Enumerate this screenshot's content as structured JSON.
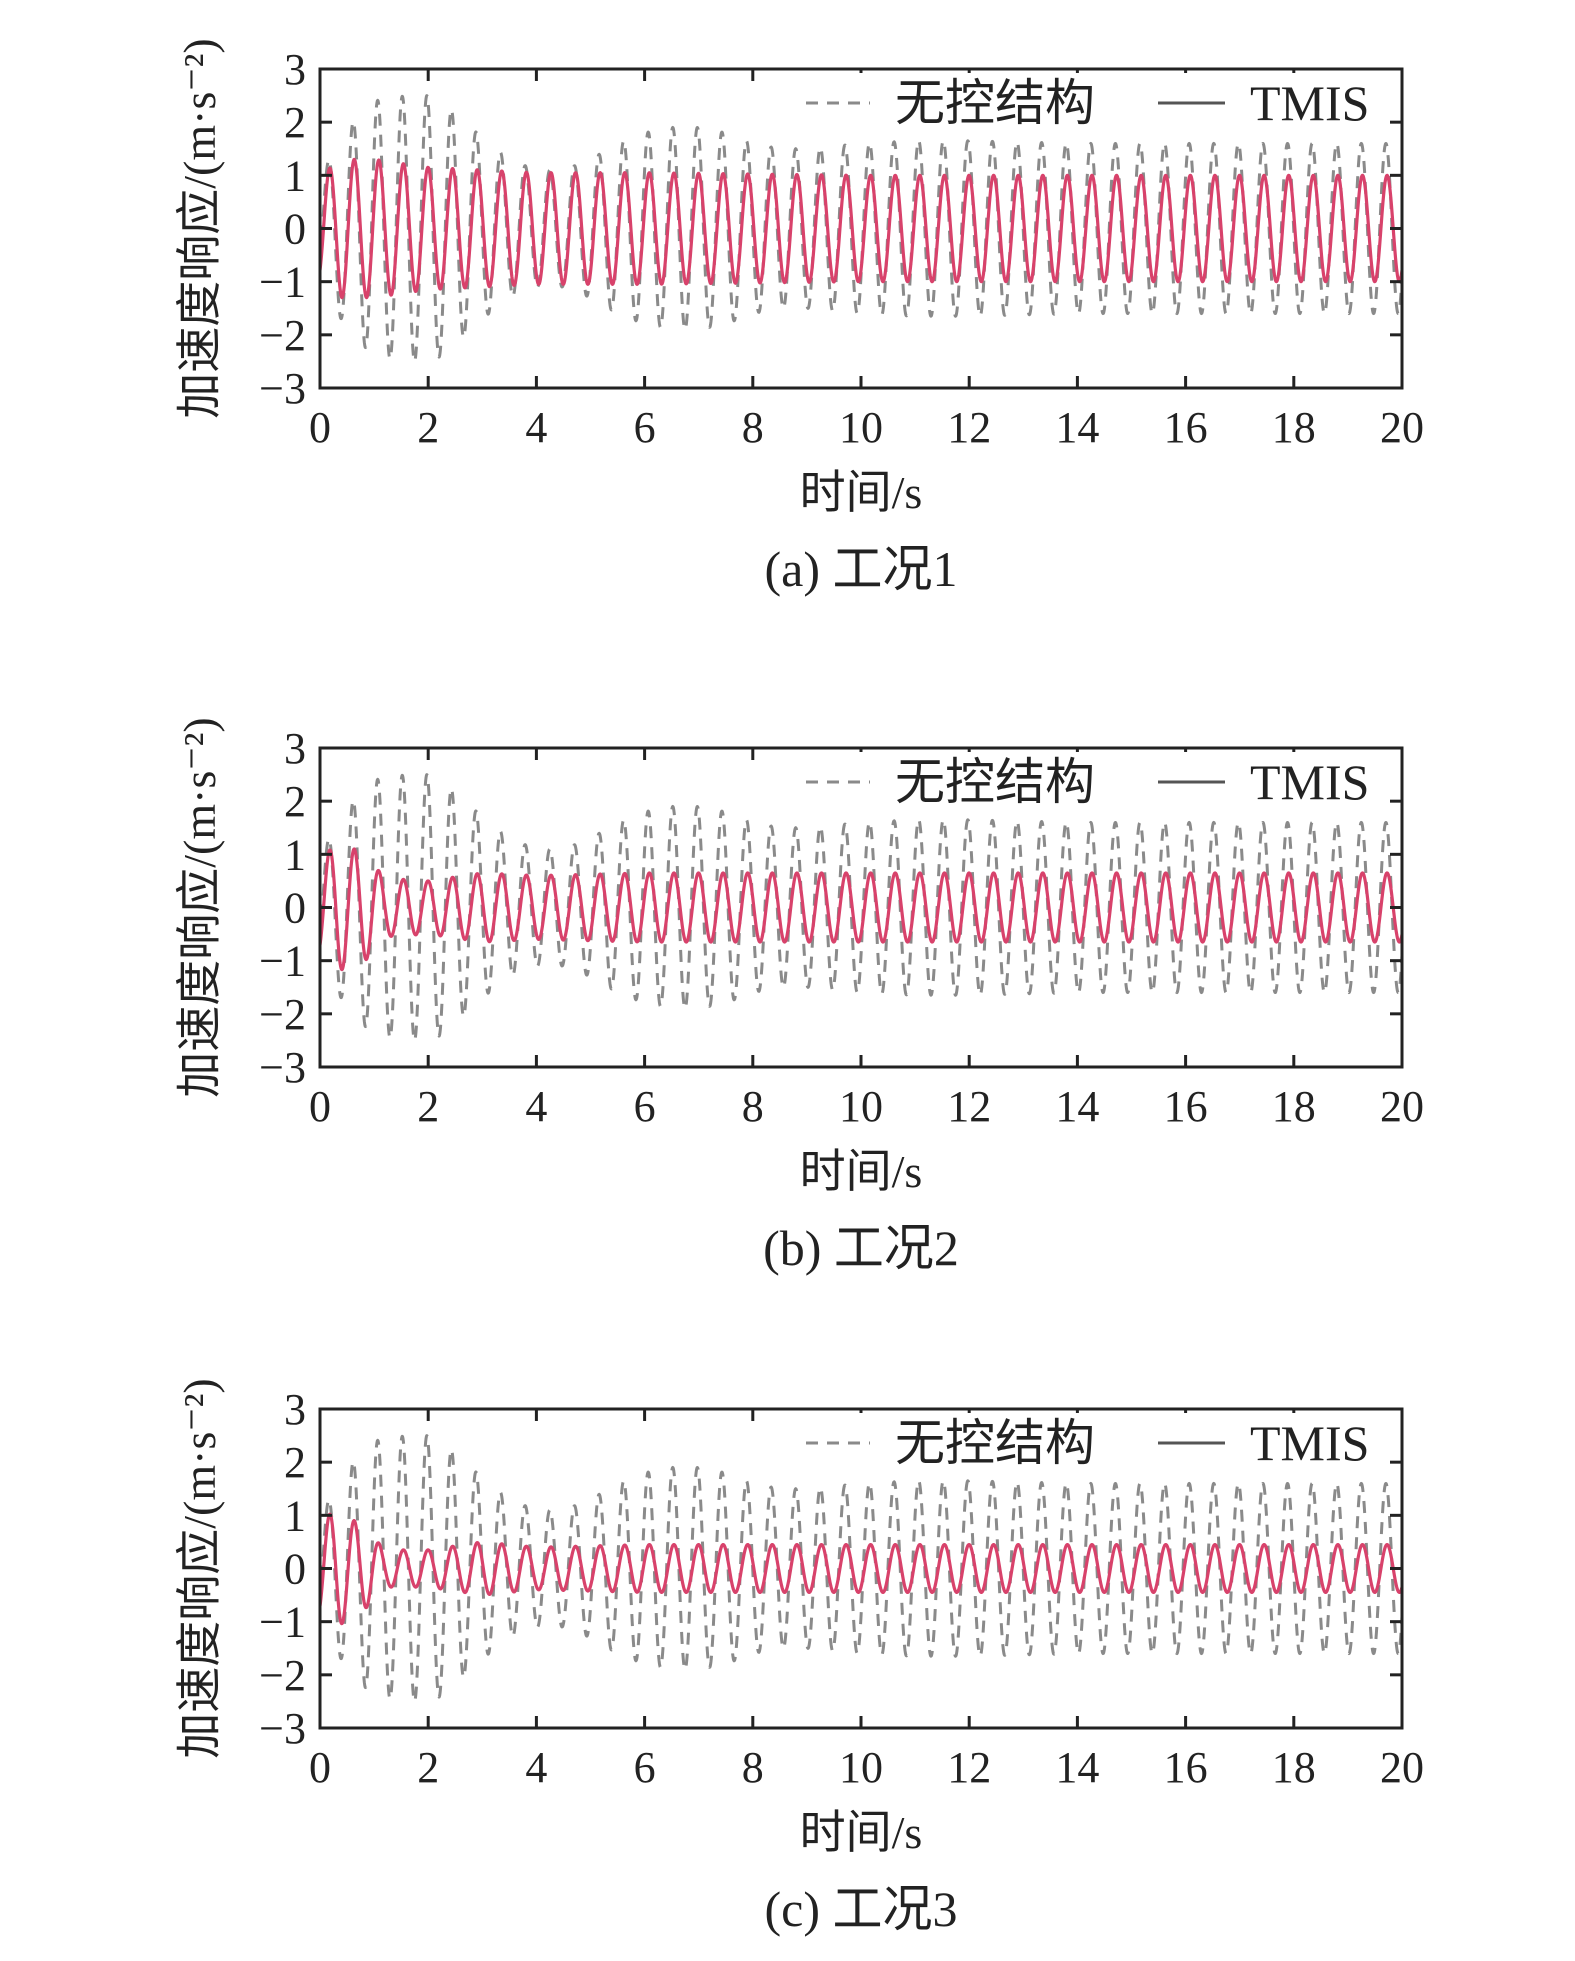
{
  "figure": {
    "colors": {
      "uncontrolled_dash": "#8a8a8a",
      "uncontrolled_dash_peak": "#7b7be0",
      "tmis_line": "#d8426b",
      "axis": "#222222"
    }
  },
  "chart_data": [
    {
      "type": "line",
      "caption": "(a) 工况1",
      "xlabel": "时间/s",
      "ylabel": "加速度响应/(m·s⁻²)",
      "xlim": [
        0,
        20
      ],
      "ylim": [
        -3,
        3
      ],
      "xticks": [
        0,
        2,
        4,
        6,
        8,
        10,
        12,
        14,
        16,
        18,
        20
      ],
      "yticks": [
        3,
        2,
        1,
        0,
        -1,
        -2,
        -3
      ],
      "legend": {
        "position": "top-right",
        "entries": [
          "无控结构",
          "TMIS"
        ]
      },
      "grid": false,
      "series": [
        {
          "name": "无控结构",
          "style": "dashed",
          "frequency_hz": 2.2,
          "amplitude_envelope": [
            [
              0,
              1.0
            ],
            [
              0.5,
              1.9
            ],
            [
              1.0,
              2.4
            ],
            [
              1.6,
              2.5
            ],
            [
              2.1,
              2.5
            ],
            [
              2.6,
              2.1
            ],
            [
              3.0,
              1.7
            ],
            [
              3.5,
              1.3
            ],
            [
              4.0,
              1.1
            ],
            [
              4.5,
              1.1
            ],
            [
              5.0,
              1.3
            ],
            [
              5.5,
              1.6
            ],
            [
              6.0,
              1.8
            ],
            [
              6.5,
              1.9
            ],
            [
              7.0,
              1.9
            ],
            [
              7.5,
              1.8
            ],
            [
              8.0,
              1.6
            ],
            [
              8.5,
              1.5
            ],
            [
              9.0,
              1.5
            ],
            [
              10.0,
              1.6
            ],
            [
              11.0,
              1.65
            ],
            [
              12.0,
              1.65
            ],
            [
              14.0,
              1.6
            ],
            [
              16.0,
              1.6
            ],
            [
              18.0,
              1.6
            ],
            [
              20.0,
              1.6
            ]
          ]
        },
        {
          "name": "TMIS",
          "style": "solid",
          "frequency_hz": 2.2,
          "amplitude_envelope": [
            [
              0,
              1.0
            ],
            [
              0.4,
              1.3
            ],
            [
              1.0,
              1.3
            ],
            [
              2.0,
              1.15
            ],
            [
              3.0,
              1.1
            ],
            [
              4.0,
              1.05
            ],
            [
              6.0,
              1.05
            ],
            [
              10.0,
              1.0
            ],
            [
              14.0,
              1.0
            ],
            [
              20.0,
              1.0
            ]
          ]
        }
      ]
    },
    {
      "type": "line",
      "caption": "(b) 工况2",
      "xlabel": "时间/s",
      "ylabel": "加速度响应/(m·s⁻²)",
      "xlim": [
        0,
        20
      ],
      "ylim": [
        -3,
        3
      ],
      "xticks": [
        0,
        2,
        4,
        6,
        8,
        10,
        12,
        14,
        16,
        18,
        20
      ],
      "yticks": [
        3,
        2,
        1,
        0,
        -1,
        -2,
        -3
      ],
      "legend": {
        "position": "top-right",
        "entries": [
          "无控结构",
          "TMIS"
        ]
      },
      "grid": false,
      "series": [
        {
          "name": "无控结构",
          "style": "dashed",
          "frequency_hz": 2.2,
          "amplitude_envelope": [
            [
              0,
              1.0
            ],
            [
              0.5,
              1.9
            ],
            [
              1.0,
              2.4
            ],
            [
              1.6,
              2.5
            ],
            [
              2.1,
              2.5
            ],
            [
              2.6,
              2.1
            ],
            [
              3.0,
              1.7
            ],
            [
              3.5,
              1.3
            ],
            [
              4.0,
              1.1
            ],
            [
              4.5,
              1.1
            ],
            [
              5.0,
              1.3
            ],
            [
              5.5,
              1.6
            ],
            [
              6.0,
              1.8
            ],
            [
              6.5,
              1.9
            ],
            [
              7.0,
              1.9
            ],
            [
              7.5,
              1.8
            ],
            [
              8.0,
              1.6
            ],
            [
              8.5,
              1.5
            ],
            [
              9.0,
              1.5
            ],
            [
              10.0,
              1.6
            ],
            [
              11.0,
              1.65
            ],
            [
              12.0,
              1.65
            ],
            [
              14.0,
              1.6
            ],
            [
              16.0,
              1.6
            ],
            [
              18.0,
              1.6
            ],
            [
              20.0,
              1.6
            ]
          ]
        },
        {
          "name": "TMIS",
          "style": "solid",
          "frequency_hz": 2.2,
          "amplitude_envelope": [
            [
              0,
              0.9
            ],
            [
              0.3,
              1.2
            ],
            [
              0.8,
              1.05
            ],
            [
              1.2,
              0.55
            ],
            [
              2.0,
              0.5
            ],
            [
              3.0,
              0.65
            ],
            [
              4.0,
              0.6
            ],
            [
              6.0,
              0.65
            ],
            [
              10.0,
              0.65
            ],
            [
              14.0,
              0.65
            ],
            [
              20.0,
              0.65
            ]
          ]
        }
      ]
    },
    {
      "type": "line",
      "caption": "(c) 工况3",
      "xlabel": "时间/s",
      "ylabel": "加速度响应/(m·s⁻²)",
      "xlim": [
        0,
        20
      ],
      "ylim": [
        -3,
        3
      ],
      "xticks": [
        0,
        2,
        4,
        6,
        8,
        10,
        12,
        14,
        16,
        18,
        20
      ],
      "yticks": [
        3,
        2,
        1,
        0,
        -1,
        -2,
        -3
      ],
      "legend": {
        "position": "top-right",
        "entries": [
          "无控结构",
          "TMIS"
        ]
      },
      "grid": false,
      "series": [
        {
          "name": "无控结构",
          "style": "dashed",
          "frequency_hz": 2.2,
          "amplitude_envelope": [
            [
              0,
              1.0
            ],
            [
              0.5,
              1.9
            ],
            [
              1.0,
              2.4
            ],
            [
              1.6,
              2.5
            ],
            [
              2.1,
              2.5
            ],
            [
              2.6,
              2.1
            ],
            [
              3.0,
              1.7
            ],
            [
              3.5,
              1.3
            ],
            [
              4.0,
              1.1
            ],
            [
              4.5,
              1.1
            ],
            [
              5.0,
              1.3
            ],
            [
              5.5,
              1.6
            ],
            [
              6.0,
              1.8
            ],
            [
              6.5,
              1.9
            ],
            [
              7.0,
              1.9
            ],
            [
              7.5,
              1.8
            ],
            [
              8.0,
              1.6
            ],
            [
              8.5,
              1.5
            ],
            [
              9.0,
              1.5
            ],
            [
              10.0,
              1.6
            ],
            [
              11.0,
              1.65
            ],
            [
              12.0,
              1.65
            ],
            [
              14.0,
              1.6
            ],
            [
              16.0,
              1.6
            ],
            [
              18.0,
              1.6
            ],
            [
              20.0,
              1.6
            ]
          ]
        },
        {
          "name": "TMIS",
          "style": "solid",
          "frequency_hz": 2.2,
          "amplitude_envelope": [
            [
              0,
              0.9
            ],
            [
              0.3,
              1.1
            ],
            [
              0.8,
              0.8
            ],
            [
              1.2,
              0.35
            ],
            [
              2.0,
              0.35
            ],
            [
              3.0,
              0.5
            ],
            [
              4.0,
              0.4
            ],
            [
              6.0,
              0.45
            ],
            [
              10.0,
              0.45
            ],
            [
              14.0,
              0.45
            ],
            [
              20.0,
              0.45
            ]
          ]
        }
      ]
    }
  ]
}
